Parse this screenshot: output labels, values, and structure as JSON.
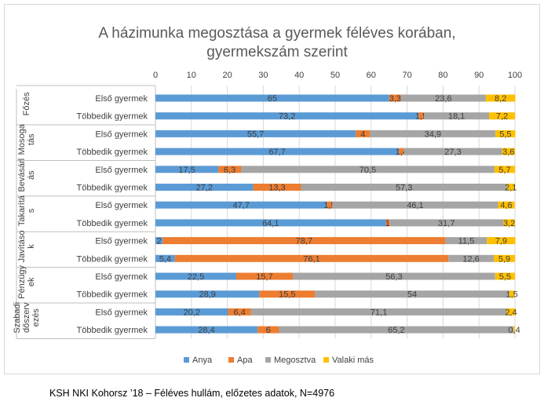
{
  "chart_data": {
    "type": "bar",
    "orientation": "horizontal",
    "stacked": true,
    "title_lines": [
      "A házimunka megosztása a gyermek féléves korában,",
      "gyermekszám szerint"
    ],
    "xlim": [
      0,
      100
    ],
    "x_ticks": [
      "0",
      "10",
      "20",
      "30",
      "40",
      "50",
      "60",
      "70",
      "80",
      "90",
      "100"
    ],
    "grid": true,
    "legend_position": "bottom",
    "series": [
      {
        "name": "Anya",
        "color": "#5b9bd5"
      },
      {
        "name": "Apa",
        "color": "#ed7d31"
      },
      {
        "name": "Megosztva",
        "color": "#a5a5a5"
      },
      {
        "name": "Valaki más",
        "color": "#ffc000"
      }
    ],
    "groups": [
      {
        "lines": [
          "Főzés"
        ],
        "rows": [
          {
            "label": "Első gyermek",
            "values": [
              65,
              3.3,
              23.6,
              8.2
            ],
            "labels": [
              "65",
              "3,3",
              "23,6",
              "8,2"
            ]
          },
          {
            "label": "Többedik gyermek",
            "values": [
              73.2,
              1.5,
              18.1,
              7.2
            ],
            "labels": [
              "73,2",
              "1,5",
              "18,1",
              "7,2"
            ]
          }
        ]
      },
      {
        "lines": [
          "Mosoga",
          "tás"
        ],
        "rows": [
          {
            "label": "Első gyermek",
            "values": [
              55.7,
              4,
              34.9,
              5.5
            ],
            "labels": [
              "55,7",
              "4",
              "34,9",
              "5,5"
            ]
          },
          {
            "label": "Többedik gyermek",
            "values": [
              67.7,
              1.4,
              27.3,
              3.6
            ],
            "labels": [
              "67,7",
              "1,4",
              "27,3",
              "3,6"
            ]
          }
        ]
      },
      {
        "lines": [
          "Bevásárl",
          "ás"
        ],
        "rows": [
          {
            "label": "Első gyermek",
            "values": [
              17.5,
              6.3,
              70.5,
              5.7
            ],
            "labels": [
              "17,5",
              "6,3",
              "70,5",
              "5,7"
            ]
          },
          {
            "label": "Többedik gyermek",
            "values": [
              27.2,
              13.3,
              57.3,
              2.1
            ],
            "labels": [
              "27,2",
              "13,3",
              "57,3",
              "2,1"
            ]
          }
        ]
      },
      {
        "lines": [
          "Takarítá",
          "s"
        ],
        "rows": [
          {
            "label": "Első gyermek",
            "values": [
              47.7,
              1.5,
              46.1,
              4.6
            ],
            "labels": [
              "47,7",
              "1,5",
              "46,1",
              "4,6"
            ]
          },
          {
            "label": "Többedik gyermek",
            "values": [
              64.1,
              1,
              31.7,
              3.2
            ],
            "labels": [
              "64,1",
              "1",
              "31,7",
              "3,2"
            ]
          }
        ]
      },
      {
        "lines": [
          "Javításo",
          "k"
        ],
        "rows": [
          {
            "label": "Első gyermek",
            "values": [
              2,
              78.7,
              11.5,
              7.9
            ],
            "labels": [
              "2",
              "78,7",
              "11,5",
              "7,9"
            ]
          },
          {
            "label": "Többedik gyermek",
            "values": [
              5.4,
              76.1,
              12.6,
              5.9
            ],
            "labels": [
              "5,4",
              "76,1",
              "12,6",
              "5,9"
            ]
          }
        ]
      },
      {
        "lines": [
          "Pénzügy",
          "ek"
        ],
        "rows": [
          {
            "label": "Első gyermek",
            "values": [
              22.5,
              15.7,
              56.3,
              5.5
            ],
            "labels": [
              "22,5",
              "15,7",
              "56,3",
              "5,5"
            ]
          },
          {
            "label": "Többedik gyermek",
            "values": [
              28.9,
              15.5,
              54,
              1.5
            ],
            "labels": [
              "28,9",
              "15,5",
              "54",
              "1,5"
            ]
          }
        ]
      },
      {
        "lines": [
          "Szabadi",
          "dőszerv",
          "ezés"
        ],
        "rows": [
          {
            "label": "Első gyermek",
            "values": [
              20.2,
              6.4,
              71.1,
              2.4
            ],
            "labels": [
              "20,2",
              "6,4",
              "71,1",
              "2,4"
            ]
          },
          {
            "label": "Többedik gyermek",
            "values": [
              28.4,
              6,
              65.2,
              0.4
            ],
            "labels": [
              "28,4",
              "6",
              "65,2",
              "0,4"
            ]
          }
        ]
      }
    ]
  },
  "footer": "KSH NKI Kohorsz ’18 – Féléves hullám, előzetes adatok, N=4976"
}
